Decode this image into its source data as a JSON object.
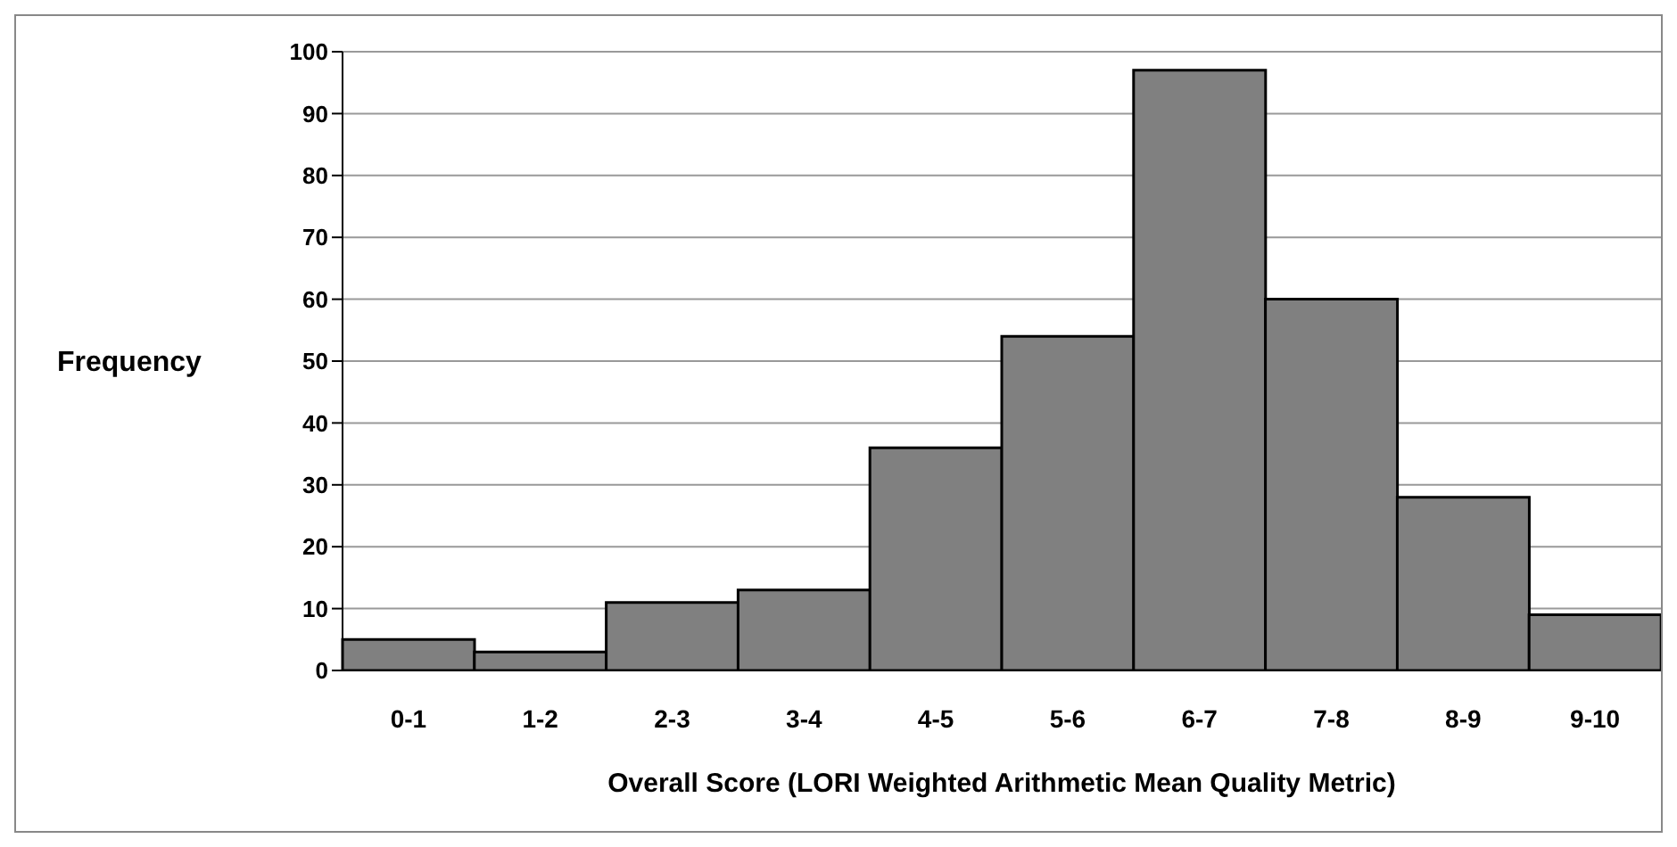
{
  "chart_data": {
    "type": "bar",
    "categories": [
      "0-1",
      "1-2",
      "2-3",
      "3-4",
      "4-5",
      "5-6",
      "6-7",
      "7-8",
      "8-9",
      "9-10"
    ],
    "values": [
      5,
      3,
      11,
      13,
      36,
      54,
      97,
      60,
      28,
      9
    ],
    "color": "#808080",
    "xlabel": "Overall Score (LORI Weighted Arithmetic Mean Quality Metric)",
    "ylabel": "Frequency",
    "ylim": [
      0,
      100
    ],
    "yticks": [
      0,
      10,
      20,
      30,
      40,
      50,
      60,
      70,
      80,
      90,
      100
    ],
    "grid": "y"
  }
}
